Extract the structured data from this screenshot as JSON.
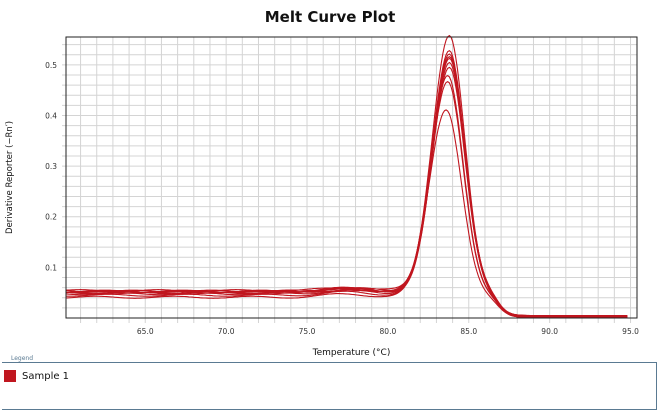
{
  "chart_data": {
    "type": "line",
    "title": "Melt Curve Plot",
    "xlabel": "Temperature (°C)",
    "ylabel": "Derivative Reporter (−Rn′)",
    "xlim": [
      60.1,
      95.4
    ],
    "ylim": [
      0,
      0.555
    ],
    "xticks": [
      "65.0",
      "70.0",
      "75.0",
      "80.0",
      "85.0",
      "90.0",
      "95.0"
    ],
    "xtick_values": [
      65,
      70,
      75,
      80,
      85,
      90,
      95
    ],
    "yticks": [
      "0.1",
      "0.2",
      "0.3",
      "0.4",
      "0.5"
    ],
    "ytick_values": [
      0.1,
      0.2,
      0.3,
      0.4,
      0.5
    ],
    "grid": true,
    "legend_position": "bottom",
    "series_color": "#c0161f",
    "series": [
      {
        "name": "Sample 1",
        "tm": 83.8,
        "peak": 0.553,
        "baseline": 0.047
      },
      {
        "name": "Sample 1",
        "tm": 83.8,
        "peak": 0.525,
        "baseline": 0.049
      },
      {
        "name": "Sample 1",
        "tm": 83.8,
        "peak": 0.52,
        "baseline": 0.05
      },
      {
        "name": "Sample 1",
        "tm": 83.8,
        "peak": 0.515,
        "baseline": 0.048
      },
      {
        "name": "Sample 1",
        "tm": 83.8,
        "peak": 0.51,
        "baseline": 0.051
      },
      {
        "name": "Sample 1",
        "tm": 83.8,
        "peak": 0.5,
        "baseline": 0.046
      },
      {
        "name": "Sample 1",
        "tm": 83.8,
        "peak": 0.49,
        "baseline": 0.05
      },
      {
        "name": "Sample 1",
        "tm": 83.7,
        "peak": 0.475,
        "baseline": 0.045
      },
      {
        "name": "Sample 1",
        "tm": 83.7,
        "peak": 0.465,
        "baseline": 0.042
      },
      {
        "name": "Sample 1",
        "tm": 83.6,
        "peak": 0.41,
        "baseline": 0.038
      }
    ]
  },
  "legend": {
    "title": "Legend",
    "items": [
      {
        "label": "Sample 1",
        "color": "#c0161f"
      }
    ]
  }
}
